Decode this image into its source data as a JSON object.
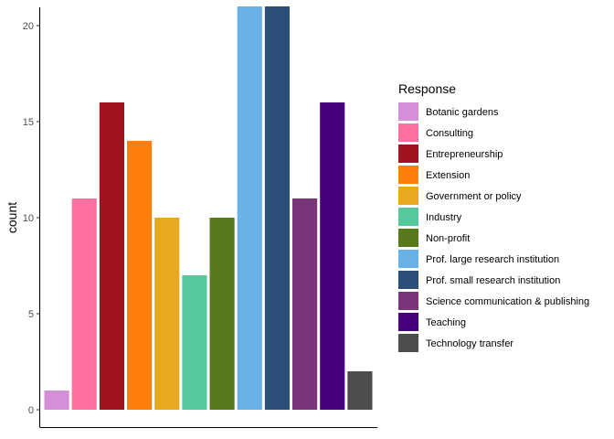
{
  "chart_data": {
    "type": "bar",
    "title": "",
    "xlabel": "",
    "ylabel": "count",
    "ylim": [
      0,
      21
    ],
    "yticks": [
      0,
      5,
      10,
      15,
      20
    ],
    "grid": false,
    "legend": {
      "title": "Response",
      "placement": "right"
    },
    "categories": [
      "Botanic gardens",
      "Consulting",
      "Entrepreneurship",
      "Extension",
      "Government or policy",
      "Industry",
      "Non-profit",
      "Prof. large research institution",
      "Prof. small research institution",
      "Science communication & publishing",
      "Teaching",
      "Technology transfer"
    ],
    "values": [
      1,
      11,
      16,
      14,
      10,
      7,
      10,
      21,
      21,
      11,
      16,
      2
    ],
    "colors": [
      "#d48fd8",
      "#ff6fa0",
      "#a0131f",
      "#ff7f0e",
      "#e8a820",
      "#56c89b",
      "#567a1c",
      "#6ab1e8",
      "#2b4f78",
      "#7a3478",
      "#45007a",
      "#4d4d4d"
    ]
  }
}
